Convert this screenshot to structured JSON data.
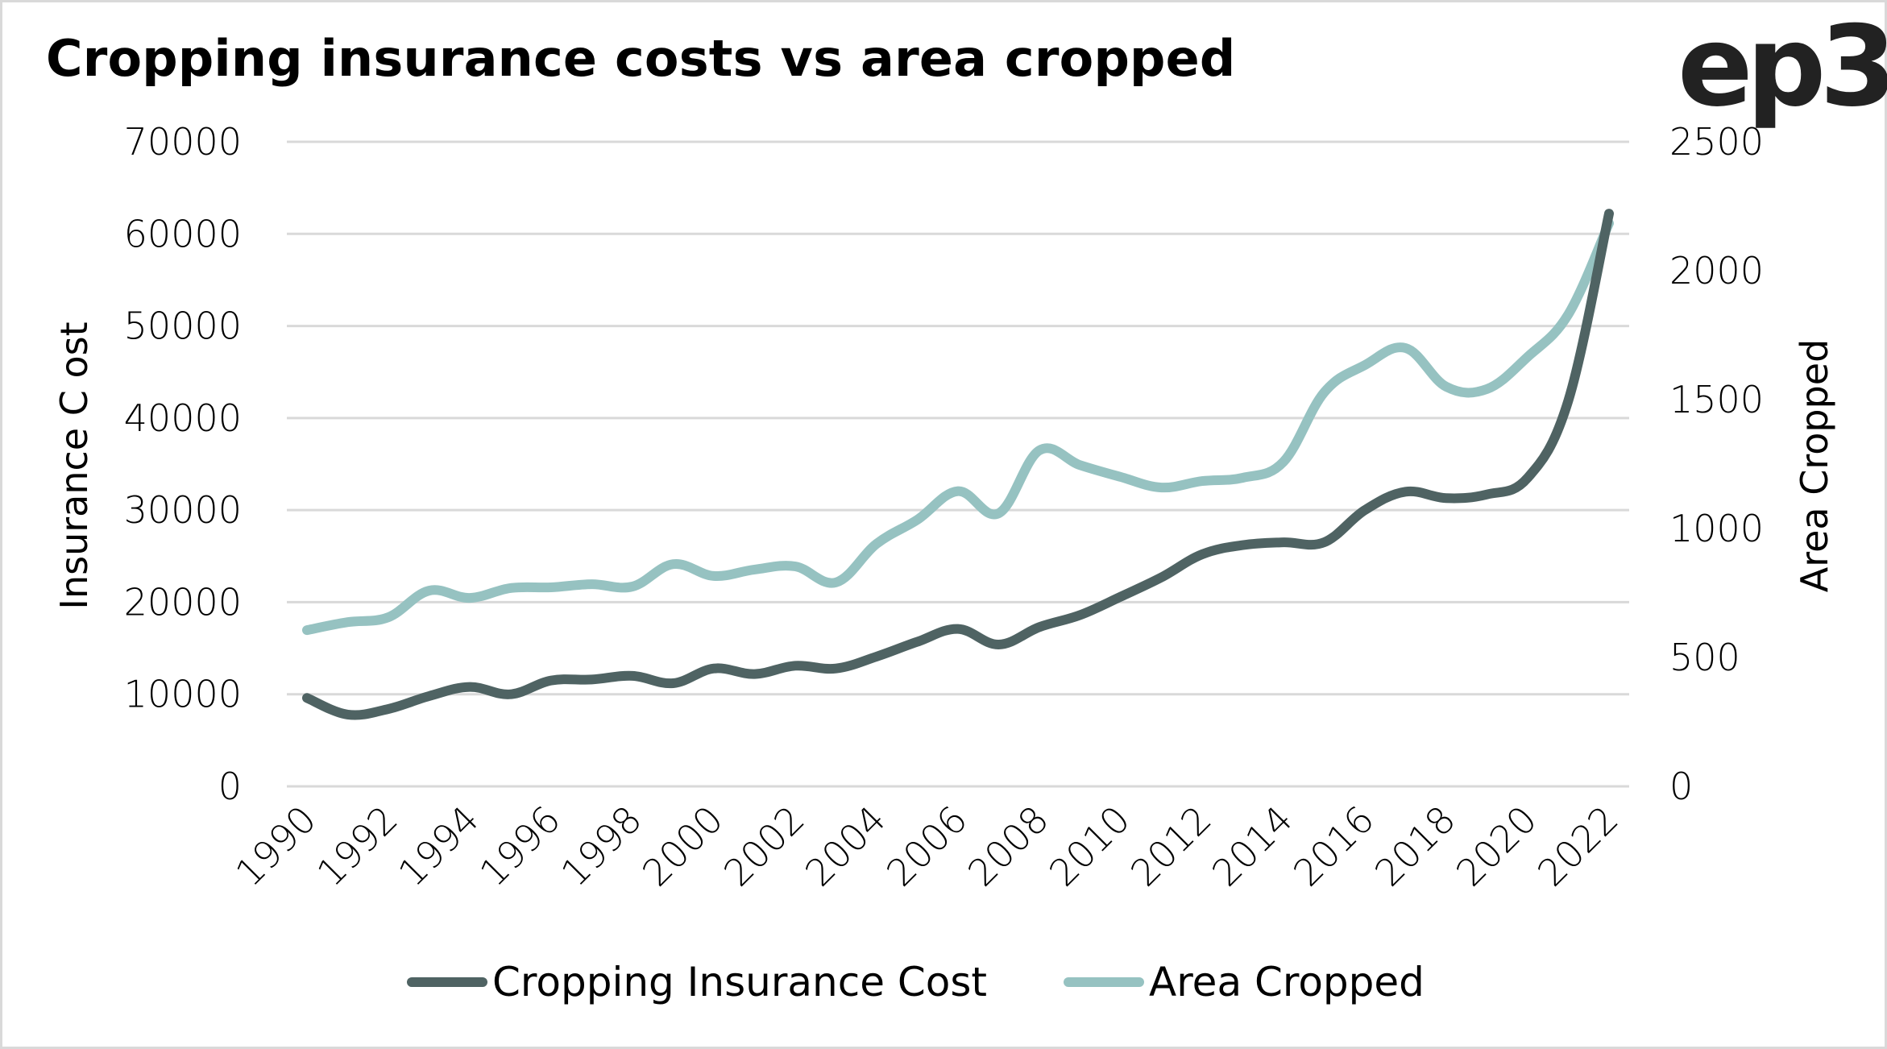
{
  "header": {
    "title": "Cropping insurance costs vs area cropped",
    "logo_text": "ep3"
  },
  "chart_data": {
    "type": "line",
    "title": "Cropping insurance costs vs area cropped",
    "xlabel": "",
    "ylabel": "Insurance C ost",
    "y2label": "Area Cropped",
    "x": [
      1990,
      1991,
      1992,
      1993,
      1994,
      1995,
      1996,
      1997,
      1998,
      1999,
      2000,
      2001,
      2002,
      2003,
      2004,
      2005,
      2006,
      2007,
      2008,
      2009,
      2010,
      2011,
      2012,
      2013,
      2014,
      2015,
      2016,
      2017,
      2018,
      2019,
      2020,
      2021,
      2022
    ],
    "x_tick_labels": [
      "1990",
      "1992",
      "1994",
      "1996",
      "1998",
      "2000",
      "2002",
      "2004",
      "2006",
      "2008",
      "2010",
      "2012",
      "2014",
      "2016",
      "2018",
      "2020",
      "2022"
    ],
    "ylim": [
      0,
      70000
    ],
    "y_ticks": [
      "0",
      "10000",
      "20000",
      "30000",
      "40000",
      "50000",
      "60000",
      "70000"
    ],
    "y2lim": [
      0,
      2500
    ],
    "y2_ticks": [
      "0",
      "500",
      "1000",
      "1500",
      "2000",
      "2500"
    ],
    "grid": true,
    "legend_position": "bottom",
    "series": [
      {
        "name": "Cropping Insurance Cost",
        "axis": "left",
        "color": "#4f6363",
        "values": [
          9600,
          7800,
          8400,
          9800,
          10800,
          10000,
          11500,
          11600,
          12000,
          11200,
          12800,
          12200,
          13100,
          12800,
          14100,
          15700,
          17100,
          15400,
          17300,
          18600,
          20600,
          22700,
          25200,
          26200,
          26500,
          26500,
          30000,
          32000,
          31300,
          31700,
          33500,
          41900,
          62200
        ]
      },
      {
        "name": "Area Cropped",
        "axis": "right",
        "color": "#96c2c1",
        "values": [
          606,
          637,
          656,
          759,
          731,
          769,
          772,
          784,
          775,
          862,
          816,
          841,
          853,
          791,
          941,
          1034,
          1145,
          1059,
          1303,
          1246,
          1200,
          1159,
          1184,
          1197,
          1259,
          1528,
          1634,
          1700,
          1550,
          1541,
          1666,
          1831,
          2184
        ]
      }
    ]
  }
}
